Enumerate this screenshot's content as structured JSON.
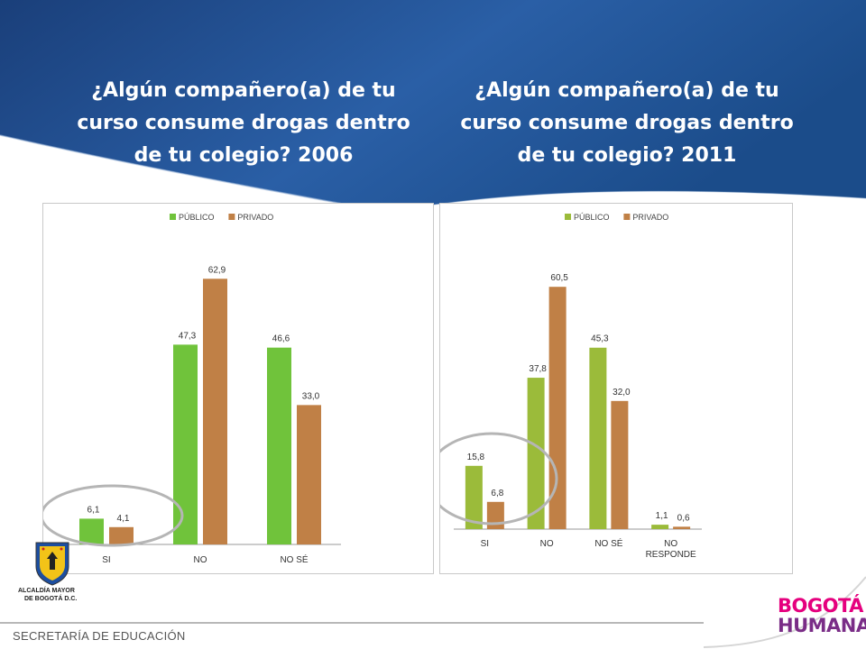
{
  "slide": {
    "title_left": "¿Algún compañero(a) de tu curso consume drogas dentro de tu colegio? 2006",
    "title_right": "¿Algún compañero(a) de tu curso consume drogas dentro de tu colegio? 2011",
    "logo_left_text_1": "ALCALDÍA MAYOR",
    "logo_left_text_2": "DE BOGOTÁ D.C.",
    "footer": "SECRETARÍA DE EDUCACIÓN",
    "brand_line_1": "BOGOTÁ",
    "brand_line_2": "HUMANA"
  },
  "chart_data": [
    {
      "type": "bar",
      "categories": [
        "SI",
        "NO",
        "NO SÉ"
      ],
      "series": [
        {
          "name": "PÚBLICO",
          "values": [
            6.1,
            47.3,
            46.6
          ],
          "labels": [
            "6,1",
            "47,3",
            "46,6"
          ],
          "color": "#70c33b"
        },
        {
          "name": "PRIVADO",
          "values": [
            4.1,
            62.9,
            33.0
          ],
          "labels": [
            "4,1",
            "62,9",
            "33,0"
          ],
          "color": "#c08046"
        }
      ],
      "ylim": [
        0,
        70
      ],
      "legend": "top",
      "highlight": "SI"
    },
    {
      "type": "bar",
      "categories": [
        "SI",
        "NO",
        "NO SÉ",
        "NO RESPONDE"
      ],
      "series": [
        {
          "name": "PÚBLICO",
          "values": [
            15.8,
            37.8,
            45.3,
            1.1
          ],
          "labels": [
            "15,8",
            "37,8",
            "45,3",
            "1,1"
          ],
          "color": "#9bbb3a"
        },
        {
          "name": "PRIVADO",
          "values": [
            6.8,
            60.5,
            32.0,
            0.6
          ],
          "labels": [
            "6,8",
            "60,5",
            "32,0",
            "0,6"
          ],
          "color": "#c08046"
        }
      ],
      "ylim": [
        0,
        70
      ],
      "legend": "top",
      "highlight": "SI"
    }
  ]
}
